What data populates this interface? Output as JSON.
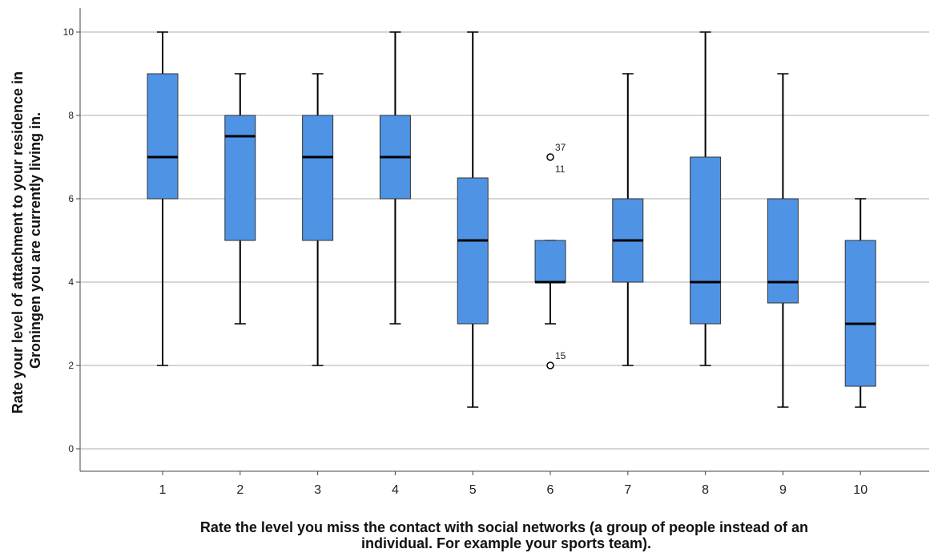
{
  "chart_data": {
    "type": "boxplot",
    "xlabel": [
      "Rate the level you miss the contact with social networks (a group of people instead of an",
      "individual. For example your sports team)."
    ],
    "ylabel": [
      "Rate your level of attachment to your residence in",
      "Groningen you are currently living in."
    ],
    "ylim": [
      -0.5,
      10.5
    ],
    "yticks": [
      0,
      2,
      4,
      6,
      8,
      10
    ],
    "grid": "horizontal",
    "box_color": "#4f93e4",
    "categories": [
      "1",
      "2",
      "3",
      "4",
      "5",
      "6",
      "7",
      "8",
      "9",
      "10"
    ],
    "boxes": [
      {
        "category": "1",
        "min": 2,
        "q1": 6,
        "median": 7,
        "q3": 9,
        "max": 10
      },
      {
        "category": "2",
        "min": 3,
        "q1": 5,
        "median": 7.5,
        "q3": 8,
        "max": 9
      },
      {
        "category": "3",
        "min": 2,
        "q1": 5,
        "median": 7,
        "q3": 8,
        "max": 9
      },
      {
        "category": "4",
        "min": 3,
        "q1": 6,
        "median": 7,
        "q3": 8,
        "max": 10
      },
      {
        "category": "5",
        "min": 1,
        "q1": 3,
        "median": 5,
        "q3": 6.5,
        "max": 10
      },
      {
        "category": "6",
        "min": 3,
        "q1": 4,
        "median": 4,
        "q3": 5,
        "max": 5
      },
      {
        "category": "7",
        "min": 2,
        "q1": 4,
        "median": 5,
        "q3": 6,
        "max": 9
      },
      {
        "category": "8",
        "min": 2,
        "q1": 3,
        "median": 4,
        "q3": 7,
        "max": 10
      },
      {
        "category": "9",
        "min": 1,
        "q1": 3.5,
        "median": 4,
        "q3": 6,
        "max": 9
      },
      {
        "category": "10",
        "min": 1,
        "q1": 1.5,
        "median": 3,
        "q3": 5,
        "max": 6
      }
    ],
    "outliers": [
      {
        "category": "6",
        "value": 7,
        "labels": [
          "37",
          "11"
        ]
      },
      {
        "category": "6",
        "value": 2,
        "labels": [
          "15"
        ]
      }
    ]
  }
}
